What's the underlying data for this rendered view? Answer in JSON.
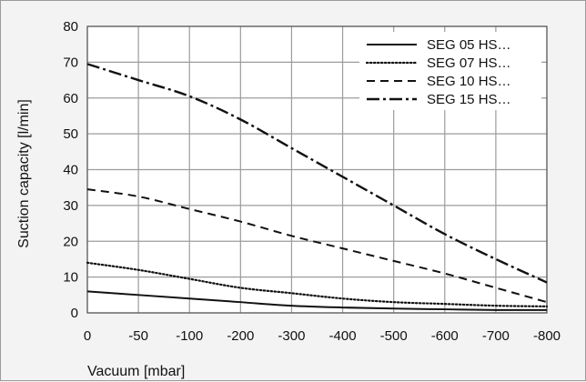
{
  "chart_data": {
    "type": "line",
    "xlabel": "Vacuum [mbar]",
    "ylabel": "Suction capacity [l/min]",
    "x_ticks": [
      "0",
      "-50",
      "-100",
      "-200",
      "-300",
      "-400",
      "-500",
      "-600",
      "-700",
      "-800"
    ],
    "xlim": [
      "0",
      "-800"
    ],
    "ylim": [
      0,
      80
    ],
    "y_ticks": [
      0,
      10,
      20,
      30,
      40,
      50,
      60,
      70,
      80
    ],
    "grid": true,
    "legend_position": "top-right",
    "series": [
      {
        "name": "SEG 05 HS…",
        "style": "solid",
        "values": [
          6,
          5,
          4,
          3,
          2,
          1.5,
          1.2,
          1,
          0.8,
          0.8
        ]
      },
      {
        "name": "SEG 07 HS…",
        "style": "dotted",
        "values": [
          14,
          12,
          9.5,
          7,
          5.5,
          4,
          3,
          2.5,
          2,
          1.8
        ]
      },
      {
        "name": "SEG 10 HS…",
        "style": "dashed",
        "values": [
          34.5,
          32.5,
          29,
          25.5,
          21.5,
          18,
          14.5,
          11,
          7,
          3
        ]
      },
      {
        "name": "SEG 15 HS…",
        "style": "dash-dot",
        "values": [
          69.5,
          65,
          60.5,
          54,
          46,
          38,
          30,
          22,
          15,
          8.5
        ]
      }
    ]
  }
}
